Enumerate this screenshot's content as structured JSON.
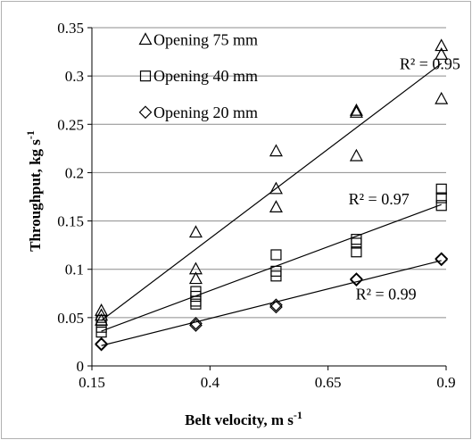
{
  "chart_data": {
    "type": "scatter",
    "xlabel": "Belt velocity, m s",
    "xlabel_sup": "-1",
    "ylabel": "Throughput, kg s",
    "ylabel_sup": "-1",
    "xlim": [
      0.15,
      0.9
    ],
    "ylim": [
      0,
      0.35
    ],
    "x_ticks": [
      0.15,
      0.4,
      0.65,
      0.9
    ],
    "x_tick_labels": [
      "0.15",
      "0.4",
      "0.65",
      "0.9"
    ],
    "y_ticks": [
      0,
      0.05,
      0.1,
      0.15,
      0.2,
      0.25,
      0.3,
      0.35
    ],
    "y_tick_labels": [
      "0",
      "0.05",
      "0.1",
      "0.15",
      "0.2",
      "0.25",
      "0.3",
      "0.35"
    ],
    "grid": "horizontal",
    "legend_position": "top-left",
    "series": [
      {
        "name": "Opening 75 mm",
        "marker": "triangle",
        "x": [
          0.17,
          0.17,
          0.17,
          0.37,
          0.37,
          0.37,
          0.54,
          0.54,
          0.54,
          0.71,
          0.71,
          0.71,
          0.89,
          0.89,
          0.89
        ],
        "y": [
          0.057,
          0.052,
          0.047,
          0.138,
          0.1,
          0.09,
          0.222,
          0.183,
          0.164,
          0.264,
          0.262,
          0.217,
          0.331,
          0.322,
          0.276
        ],
        "fit": {
          "x": [
            0.17,
            0.89
          ],
          "y": [
            0.047,
            0.313
          ]
        },
        "r2_label": "R² = 0.95"
      },
      {
        "name": "Opening 40 mm",
        "marker": "square",
        "x": [
          0.17,
          0.17,
          0.17,
          0.37,
          0.37,
          0.37,
          0.37,
          0.54,
          0.54,
          0.54,
          0.71,
          0.71,
          0.71,
          0.89,
          0.89,
          0.89
        ],
        "y": [
          0.047,
          0.04,
          0.035,
          0.077,
          0.072,
          0.067,
          0.064,
          0.115,
          0.098,
          0.093,
          0.131,
          0.127,
          0.118,
          0.183,
          0.174,
          0.166
        ],
        "fit": {
          "x": [
            0.17,
            0.89
          ],
          "y": [
            0.036,
            0.167
          ]
        },
        "r2_label": "R² = 0.97"
      },
      {
        "name": "Opening 20 mm",
        "marker": "diamond",
        "x": [
          0.17,
          0.17,
          0.37,
          0.37,
          0.54,
          0.54,
          0.71,
          0.71,
          0.89,
          0.89
        ],
        "y": [
          0.023,
          0.022,
          0.044,
          0.042,
          0.063,
          0.061,
          0.09,
          0.089,
          0.111,
          0.11
        ],
        "fit": {
          "x": [
            0.17,
            0.89
          ],
          "y": [
            0.021,
            0.109
          ]
        },
        "r2_label": "R² = 0.99"
      }
    ]
  }
}
